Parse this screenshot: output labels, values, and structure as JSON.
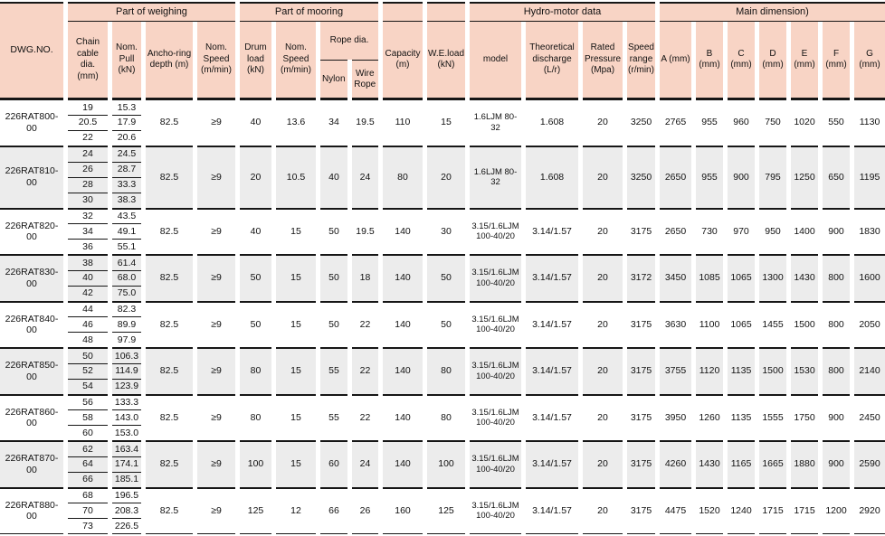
{
  "header": {
    "dwg": "DWG.NO.",
    "groups": [
      {
        "label": "Part of weighing"
      },
      {
        "label": "Part of mooring"
      },
      {
        "label": "Hydro-motor data"
      },
      {
        "label": "Main dimension)"
      }
    ],
    "cols": {
      "chain": "Chain cable dia. (mm)",
      "pull": "Nom. Pull (kN)",
      "depth": "Ancho-ring depth (m)",
      "wspeed": "Nom. Speed (m/min)",
      "drum": "Drum load (kN)",
      "mspeed": "Nom. Speed (m/min)",
      "ropedia": "Rope dia.",
      "nylon": "Nylon",
      "wire": "Wire Rope",
      "capacity": "Capacity (m)",
      "weload": "W.E.load (kN)",
      "model": "model",
      "discharge": "Theoretical discharge (L/r)",
      "pressure": "Rated Pressure (Mpa)",
      "range": "Speed range (r/min)",
      "dims": [
        "A (mm)",
        "B (mm)",
        "C (mm)",
        "D (mm)",
        "E (mm)",
        "F (mm)",
        "G (mm)"
      ]
    }
  },
  "colors": {
    "header_bg": "#f8d4c5",
    "row_alt_bg": "#ececec",
    "border": "#161616"
  },
  "rows": [
    {
      "dwg": "226RAT800-00",
      "sub": [
        [
          "19",
          "15.3"
        ],
        [
          "20.5",
          "17.9"
        ],
        [
          "22",
          "20.6"
        ]
      ],
      "depth": "82.5",
      "wspeed": "≥9",
      "drum": "40",
      "mspeed": "13.6",
      "nylon": "34",
      "wire": "19.5",
      "capacity": "110",
      "weload": "15",
      "model": "1.6LJM 80-32",
      "discharge": "1.608",
      "pressure": "20",
      "range": "3250",
      "dims": [
        "2765",
        "955",
        "960",
        "750",
        "1020",
        "550",
        "1130"
      ]
    },
    {
      "dwg": "226RAT810-00",
      "sub": [
        [
          "24",
          "24.5"
        ],
        [
          "26",
          "28.7"
        ],
        [
          "28",
          "33.3"
        ],
        [
          "30",
          "38.3"
        ]
      ],
      "depth": "82.5",
      "wspeed": "≥9",
      "drum": "20",
      "mspeed": "10.5",
      "nylon": "40",
      "wire": "24",
      "capacity": "80",
      "weload": "20",
      "model": "1.6LJM 80-32",
      "discharge": "1.608",
      "pressure": "20",
      "range": "3250",
      "dims": [
        "2650",
        "955",
        "900",
        "795",
        "1250",
        "650",
        "1195"
      ]
    },
    {
      "dwg": "226RAT820-00",
      "sub": [
        [
          "32",
          "43.5"
        ],
        [
          "34",
          "49.1"
        ],
        [
          "36",
          "55.1"
        ]
      ],
      "depth": "82.5",
      "wspeed": "≥9",
      "drum": "40",
      "mspeed": "15",
      "nylon": "50",
      "wire": "19.5",
      "capacity": "140",
      "weload": "30",
      "model": "3.15/1.6LJM 100-40/20",
      "discharge": "3.14/1.57",
      "pressure": "20",
      "range": "3175",
      "dims": [
        "2650",
        "730",
        "970",
        "950",
        "1400",
        "900",
        "1830"
      ]
    },
    {
      "dwg": "226RAT830-00",
      "sub": [
        [
          "38",
          "61.4"
        ],
        [
          "40",
          "68.0"
        ],
        [
          "42",
          "75.0"
        ]
      ],
      "depth": "82.5",
      "wspeed": "≥9",
      "drum": "50",
      "mspeed": "15",
      "nylon": "50",
      "wire": "18",
      "capacity": "140",
      "weload": "50",
      "model": "3.15/1.6LJM 100-40/20",
      "discharge": "3.14/1.57",
      "pressure": "20",
      "range": "3172",
      "dims": [
        "3450",
        "1085",
        "1065",
        "1300",
        "1430",
        "800",
        "1600"
      ]
    },
    {
      "dwg": "226RAT840-00",
      "sub": [
        [
          "44",
          "82.3"
        ],
        [
          "46",
          "89.9"
        ],
        [
          "48",
          "97.9"
        ]
      ],
      "depth": "82.5",
      "wspeed": "≥9",
      "drum": "50",
      "mspeed": "15",
      "nylon": "50",
      "wire": "22",
      "capacity": "140",
      "weload": "50",
      "model": "3.15/1.6LJM 100-40/20",
      "discharge": "3.14/1.57",
      "pressure": "20",
      "range": "3175",
      "dims": [
        "3630",
        "1100",
        "1065",
        "1455",
        "1500",
        "800",
        "2050"
      ]
    },
    {
      "dwg": "226RAT850-00",
      "sub": [
        [
          "50",
          "106.3"
        ],
        [
          "52",
          "114.9"
        ],
        [
          "54",
          "123.9"
        ]
      ],
      "depth": "82.5",
      "wspeed": "≥9",
      "drum": "80",
      "mspeed": "15",
      "nylon": "55",
      "wire": "22",
      "capacity": "140",
      "weload": "80",
      "model": "3.15/1.6LJM 100-40/20",
      "discharge": "3.14/1.57",
      "pressure": "20",
      "range": "3175",
      "dims": [
        "3755",
        "1120",
        "1135",
        "1500",
        "1530",
        "800",
        "2140"
      ]
    },
    {
      "dwg": "226RAT860-00",
      "sub": [
        [
          "56",
          "133.3"
        ],
        [
          "58",
          "143.0"
        ],
        [
          "60",
          "153.0"
        ]
      ],
      "depth": "82.5",
      "wspeed": "≥9",
      "drum": "80",
      "mspeed": "15",
      "nylon": "55",
      "wire": "22",
      "capacity": "140",
      "weload": "80",
      "model": "3.15/1.6LJM 100-40/20",
      "discharge": "3.14/1.57",
      "pressure": "20",
      "range": "3175",
      "dims": [
        "3950",
        "1260",
        "1135",
        "1555",
        "1750",
        "900",
        "2450"
      ]
    },
    {
      "dwg": "226RAT870-00",
      "sub": [
        [
          "62",
          "163.4"
        ],
        [
          "64",
          "174.1"
        ],
        [
          "66",
          "185.1"
        ]
      ],
      "depth": "82.5",
      "wspeed": "≥9",
      "drum": "100",
      "mspeed": "15",
      "nylon": "60",
      "wire": "24",
      "capacity": "140",
      "weload": "100",
      "model": "3.15/1.6LJM 100-40/20",
      "discharge": "3.14/1.57",
      "pressure": "20",
      "range": "3175",
      "dims": [
        "4260",
        "1430",
        "1165",
        "1665",
        "1880",
        "900",
        "2590"
      ]
    },
    {
      "dwg": "226RAT880-00",
      "sub": [
        [
          "68",
          "196.5"
        ],
        [
          "70",
          "208.3"
        ],
        [
          "73",
          "226.5"
        ]
      ],
      "depth": "82.5",
      "wspeed": "≥9",
      "drum": "125",
      "mspeed": "12",
      "nylon": "66",
      "wire": "26",
      "capacity": "160",
      "weload": "125",
      "model": "3.15/1.6LJM 100-40/20",
      "discharge": "3.14/1.57",
      "pressure": "20",
      "range": "3175",
      "dims": [
        "4475",
        "1520",
        "1240",
        "1715",
        "1715",
        "1200",
        "2920"
      ]
    }
  ]
}
